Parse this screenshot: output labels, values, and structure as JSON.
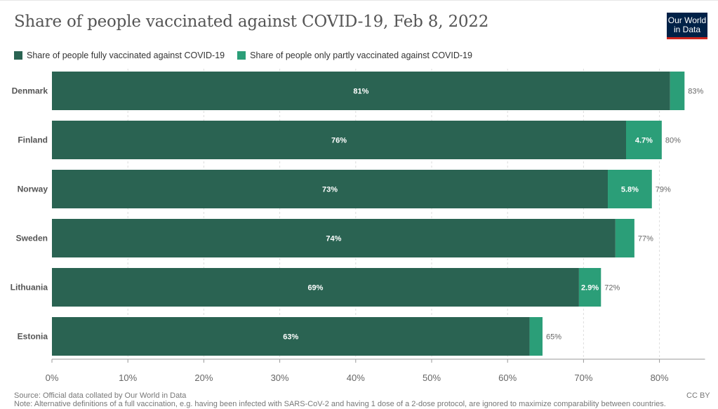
{
  "header": {
    "title": "Share of people vaccinated against COVID-19, Feb 8, 2022",
    "logo_line1": "Our World",
    "logo_line2": "in Data"
  },
  "colors": {
    "fully": "#2a6352",
    "partly": "#2b9e78",
    "background": "#ffffff",
    "logo_bg": "#002147",
    "logo_accent": "#ce261e"
  },
  "chart_data": {
    "type": "bar",
    "orientation": "horizontal",
    "stacked": true,
    "title": "Share of people vaccinated against COVID-19, Feb 8, 2022",
    "categories": [
      "Denmark",
      "Finland",
      "Norway",
      "Sweden",
      "Lithuania",
      "Estonia"
    ],
    "series": [
      {
        "name": "Share of people fully vaccinated against COVID-19",
        "values": [
          81.4,
          75.6,
          73.2,
          74.2,
          69.4,
          62.9
        ],
        "labels": [
          "81%",
          "76%",
          "73%",
          "74%",
          "69%",
          "63%"
        ]
      },
      {
        "name": "Share of people only partly vaccinated against COVID-19",
        "values": [
          1.9,
          4.7,
          5.8,
          2.5,
          2.9,
          1.7
        ],
        "labels": [
          "",
          "4.7%",
          "5.8%",
          "",
          "2.9%",
          ""
        ]
      }
    ],
    "totals": [
      "83%",
      "80%",
      "79%",
      "77%",
      "72%",
      "65%"
    ],
    "xlim": [
      0,
      86
    ],
    "xticks": [
      0,
      10,
      20,
      30,
      40,
      50,
      60,
      70,
      80
    ],
    "xtick_labels": [
      "0%",
      "10%",
      "20%",
      "30%",
      "40%",
      "50%",
      "60%",
      "70%",
      "80%"
    ],
    "legend_position": "top-left",
    "grid": "vertical-dashed"
  },
  "footer": {
    "source": "Source: Official data collated by Our World in Data",
    "note": "Note: Alternative definitions of a full vaccination, e.g. having been infected with SARS-CoV-2 and having 1 dose of a 2-dose protocol, are ignored to maximize comparability between countries.",
    "license": "CC BY"
  }
}
